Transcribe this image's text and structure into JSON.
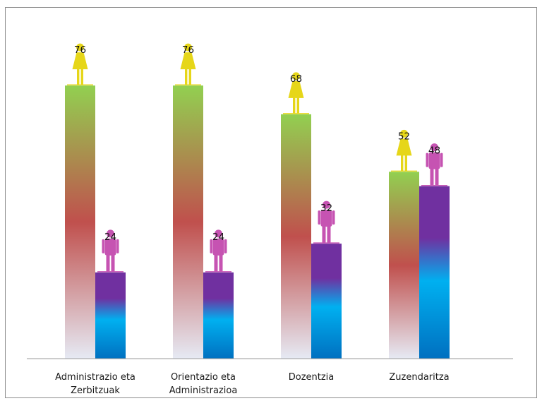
{
  "chart_data": {
    "type": "bar",
    "title": "",
    "xlabel": "",
    "ylabel": "",
    "ylim": [
      0,
      100
    ],
    "categories": [
      [
        "Administrazio eta",
        "Zerbitzuak"
      ],
      [
        "Orientazio eta",
        "Administrazioa"
      ],
      [
        "Dozentzia"
      ],
      [
        "Zuzendaritza"
      ]
    ],
    "series": [
      {
        "values": [
          76,
          76,
          68,
          52
        ],
        "icon": "female-figure-icon",
        "icon_color": "#e6d619"
      },
      {
        "values": [
          24,
          24,
          32,
          48
        ],
        "icon": "male-figure-icon",
        "icon_color": "#c653b2"
      }
    ],
    "grid": false,
    "legend": "none"
  },
  "colors": {
    "female_gradient": [
      "#92d050",
      "#c0504d",
      "#e6eaf4"
    ],
    "male_gradient": [
      "#7030a0",
      "#00b0f0",
      "#0070c0"
    ],
    "axis": "#9a9a9a"
  }
}
